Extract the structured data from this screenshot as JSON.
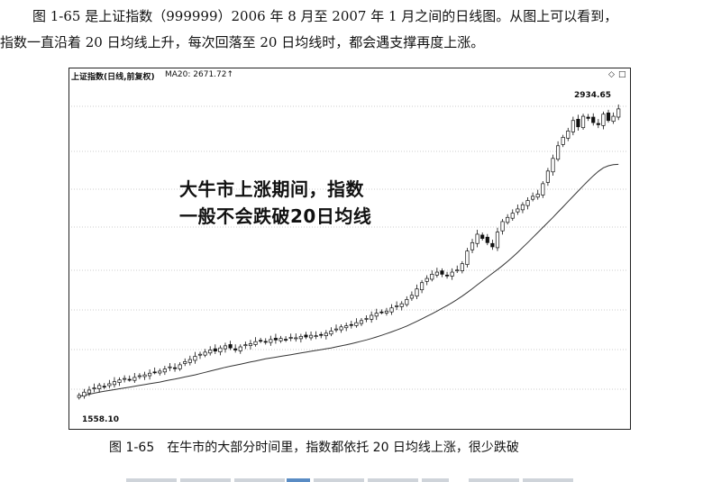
{
  "text": {
    "paragraph_line1": "图 1-65 是上证指数（999999）2006 年 8 月至 2007 年 1 月之间的日线图。从图上可以看到，",
    "paragraph_line2": "指数一直沿着 20 日均线上升，每次回落至 20 日均线时，都会遇支撑再度上涨。",
    "caption": "图 1-65　在牛市的大部分时间里，指数都依托 20 日均线上涨，很少跌破"
  },
  "chart": {
    "title": "上证指数(日线,前复权)",
    "ma_label": "MA20: 2671.72",
    "ma_arrow": "↑",
    "annotation_line1": "大牛市上涨期间，指数",
    "annotation_line2": "一般不会跌破20日均线",
    "high_label": "2934.65",
    "low_label": "1558.10",
    "diamond_icon": "◇",
    "square_icon": "□"
  },
  "chart_data": {
    "type": "candlestick",
    "title": "上证指数(日线,前复权)",
    "ma_label": "MA20: 2671.72",
    "ylim": [
      1450,
      3050
    ],
    "grid": "horizontal dotted",
    "high": 2934.65,
    "low": 1558.1,
    "close_series": [
      1575,
      1590,
      1600,
      1610,
      1622,
      1615,
      1630,
      1640,
      1648,
      1655,
      1650,
      1660,
      1668,
      1672,
      1680,
      1685,
      1690,
      1700,
      1710,
      1705,
      1720,
      1735,
      1745,
      1760,
      1770,
      1780,
      1790,
      1785,
      1800,
      1810,
      1800,
      1790,
      1805,
      1815,
      1820,
      1830,
      1835,
      1830,
      1840,
      1838,
      1845,
      1840,
      1850,
      1848,
      1855,
      1852,
      1860,
      1858,
      1862,
      1870,
      1880,
      1890,
      1900,
      1905,
      1910,
      1920,
      1930,
      1940,
      1955,
      1965,
      1970,
      1975,
      1990,
      2000,
      2010,
      2030,
      2050,
      2080,
      2110,
      2130,
      2150,
      2160,
      2150,
      2145,
      2160,
      2170,
      2200,
      2260,
      2300,
      2340,
      2320,
      2300,
      2280,
      2350,
      2400,
      2420,
      2440,
      2460,
      2480,
      2500,
      2520,
      2530,
      2580,
      2640,
      2700,
      2760,
      2800,
      2830,
      2880,
      2850,
      2900,
      2890,
      2870,
      2860,
      2910,
      2880,
      2900,
      2935
    ],
    "ma20_series": [
      1570,
      1575,
      1580,
      1585,
      1590,
      1594,
      1598,
      1602,
      1606,
      1610,
      1614,
      1618,
      1622,
      1626,
      1630,
      1634,
      1638,
      1643,
      1648,
      1652,
      1657,
      1662,
      1667,
      1672,
      1678,
      1684,
      1690,
      1696,
      1702,
      1708,
      1713,
      1718,
      1723,
      1728,
      1733,
      1738,
      1743,
      1748,
      1752,
      1756,
      1760,
      1764,
      1768,
      1772,
      1776,
      1780,
      1784,
      1788,
      1792,
      1796,
      1800,
      1805,
      1810,
      1815,
      1820,
      1826,
      1832,
      1838,
      1845,
      1852,
      1860,
      1868,
      1876,
      1885,
      1894,
      1904,
      1915,
      1926,
      1938,
      1950,
      1962,
      1975,
      1988,
      2001,
      2015,
      2030,
      2046,
      2063,
      2081,
      2100,
      2118,
      2136,
      2154,
      2172,
      2191,
      2211,
      2232,
      2254,
      2277,
      2300,
      2324,
      2348,
      2372,
      2396,
      2420,
      2445,
      2470,
      2495,
      2520,
      2545,
      2570,
      2594,
      2617,
      2638,
      2655,
      2665,
      2670,
      2672
    ]
  }
}
